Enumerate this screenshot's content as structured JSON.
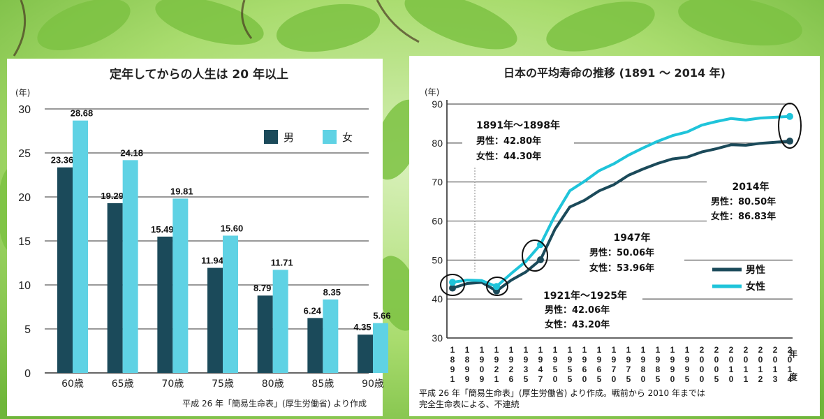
{
  "colors": {
    "male": "#1b4a5a",
    "female": "#5fd2e4",
    "background_leaf": "#8cc63a"
  },
  "chart_data": [
    {
      "type": "bar",
      "title": "定年してからの人生は 20 年以上",
      "ylabel": "(年)",
      "xlabel": "",
      "ylim": [
        0,
        30
      ],
      "yticks": [
        "0",
        "5",
        "10",
        "15",
        "20",
        "25",
        "30"
      ],
      "categories": [
        "60歳",
        "65歳",
        "70歳",
        "75歳",
        "80歳",
        "85歳",
        "90歳"
      ],
      "series": [
        {
          "name": "男",
          "values": [
            23.36,
            19.29,
            15.49,
            11.94,
            8.79,
            6.24,
            4.35
          ],
          "labels": [
            "23.36",
            "19.29",
            "15.49",
            "11.94",
            "8.79",
            "6.24",
            "4.35"
          ]
        },
        {
          "name": "女",
          "values": [
            28.68,
            24.18,
            19.81,
            15.6,
            11.71,
            8.35,
            5.66
          ],
          "labels": [
            "28.68",
            "24.18",
            "19.81",
            "15.60",
            "11.71",
            "8.35",
            "5.66"
          ]
        }
      ],
      "legend": "top-right",
      "source": "平成 26 年「簡易生命表」(厚生労働省) より作成"
    },
    {
      "type": "line",
      "title": "日本の平均寿命の推移 (1891 ～ 2014 年)",
      "ylabel": "(年)",
      "xlabel_tail": [
        "年",
        "度"
      ],
      "ylim": [
        30,
        90
      ],
      "yticks": [
        "30",
        "40",
        "50",
        "60",
        "70",
        "80",
        "90"
      ],
      "x_labels": [
        "1891",
        "1899",
        "1909",
        "1921",
        "1926",
        "1935",
        "1947",
        "1950",
        "1955",
        "1960",
        "1965",
        "1970",
        "1975",
        "1980",
        "1985",
        "1990",
        "1995",
        "2000",
        "2005",
        "2010",
        "2011",
        "2012",
        "2013",
        "2014"
      ],
      "series": [
        {
          "name": "男性",
          "values": [
            42.8,
            43.97,
            44.25,
            42.06,
            44.82,
            46.92,
            50.06,
            58.0,
            63.6,
            65.32,
            67.74,
            69.31,
            71.73,
            73.35,
            74.78,
            75.92,
            76.38,
            77.72,
            78.56,
            79.55,
            79.44,
            79.94,
            80.21,
            80.5
          ]
        },
        {
          "name": "女性",
          "values": [
            44.3,
            44.85,
            44.73,
            43.2,
            46.54,
            49.63,
            53.96,
            61.5,
            67.75,
            70.19,
            72.92,
            74.66,
            76.89,
            78.76,
            80.48,
            81.9,
            82.85,
            84.6,
            85.52,
            86.3,
            85.9,
            86.41,
            86.61,
            86.83
          ]
        }
      ],
      "legend": "bottom-right",
      "annotations": [
        {
          "head": "1891年～1898年",
          "male": "男性：42.80年",
          "female": "女性：44.30年"
        },
        {
          "head": "1921年～1925年",
          "male": "男性：42.06年",
          "female": "女性：43.20年"
        },
        {
          "head": "1947年",
          "male": "男性：50.06年",
          "female": "女性：53.96年"
        },
        {
          "head": "2014年",
          "male": "男性：80.50年",
          "female": "女性：86.83年"
        }
      ],
      "source_lines": [
        "平成 26 年「簡易生命表」(厚生労働省) より作成。戦前から 2010 年までは",
        "完全生命表による、不連続"
      ]
    }
  ]
}
